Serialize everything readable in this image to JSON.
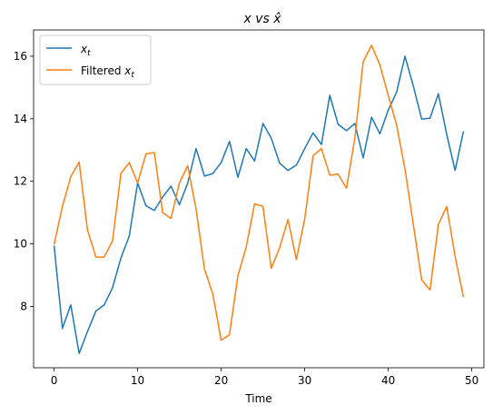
{
  "chart_data": {
    "type": "line",
    "title": "x vs x̂",
    "xlabel": "Time",
    "ylabel": "",
    "xlim": [
      -2.45,
      51.45
    ],
    "ylim": [
      6.04,
      16.84
    ],
    "xticks": [
      0,
      10,
      20,
      30,
      40,
      50
    ],
    "yticks": [
      8,
      10,
      12,
      14,
      16
    ],
    "grid": false,
    "legend_position": "top-left",
    "x": [
      0,
      1,
      2,
      3,
      4,
      5,
      6,
      7,
      8,
      9,
      10,
      11,
      12,
      13,
      14,
      15,
      16,
      17,
      18,
      19,
      20,
      21,
      22,
      23,
      24,
      25,
      26,
      27,
      28,
      29,
      30,
      31,
      32,
      33,
      34,
      35,
      36,
      37,
      38,
      39,
      40,
      41,
      42,
      43,
      44,
      45,
      46,
      47,
      48,
      49
    ],
    "series": [
      {
        "name": "x_t",
        "color": "#1f77b4",
        "values": [
          9.95,
          7.3,
          8.05,
          6.5,
          7.2,
          7.85,
          8.05,
          8.6,
          9.55,
          10.25,
          11.95,
          11.22,
          11.07,
          11.5,
          11.85,
          11.25,
          11.95,
          13.05,
          12.17,
          12.25,
          12.6,
          13.28,
          12.13,
          13.05,
          12.65,
          13.85,
          13.38,
          12.58,
          12.35,
          12.52,
          13.05,
          13.55,
          13.18,
          14.75,
          13.82,
          13.62,
          13.85,
          12.75,
          14.05,
          13.52,
          14.28,
          14.85,
          16.0,
          15.05,
          13.99,
          14.02,
          14.8,
          13.5,
          12.35,
          13.6
        ]
      },
      {
        "name": "Filtered x_t",
        "color": "#ff7f0e",
        "values": [
          9.98,
          11.2,
          12.15,
          12.62,
          10.45,
          9.58,
          9.58,
          10.1,
          12.25,
          12.6,
          11.95,
          12.88,
          12.92,
          11.0,
          10.82,
          11.95,
          12.5,
          11.1,
          9.2,
          8.4,
          6.92,
          7.1,
          8.98,
          9.9,
          11.28,
          11.2,
          9.22,
          9.88,
          10.78,
          9.5,
          10.8,
          12.82,
          13.05,
          12.2,
          12.23,
          11.78,
          13.38,
          15.82,
          16.35,
          15.72,
          14.75,
          13.8,
          12.4,
          10.62,
          8.85,
          8.53,
          10.62,
          11.2,
          9.6,
          8.3
        ]
      }
    ]
  },
  "legend": {
    "series_1_base": "x",
    "series_1_sub": "t",
    "series_2_prefix": "Filtered ",
    "series_2_base": "x",
    "series_2_sub": "t"
  }
}
